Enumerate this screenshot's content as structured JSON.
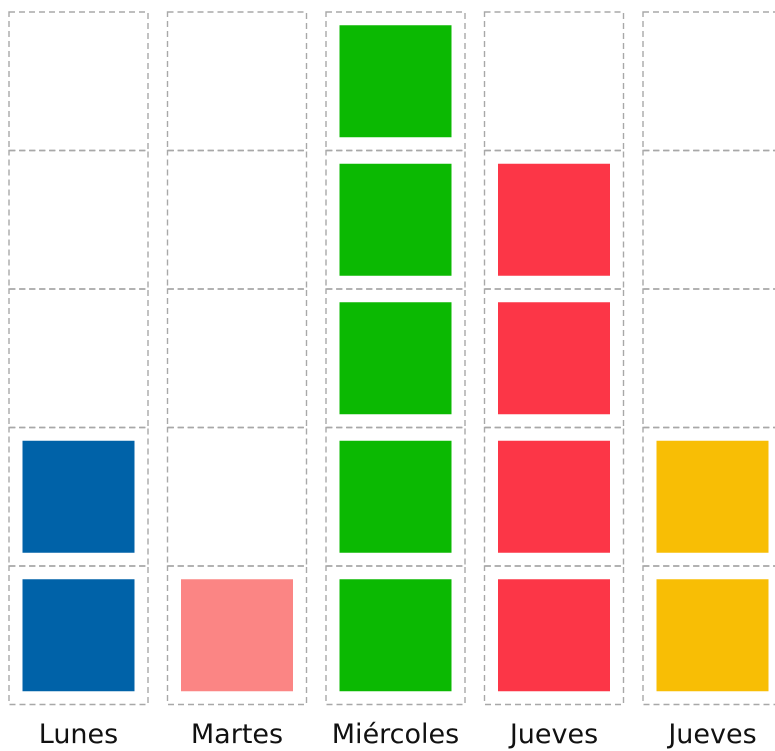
{
  "chart_data": {
    "type": "bar",
    "categories": [
      "Lunes",
      "Martes",
      "Miércoles",
      "Jueves",
      "Jueves"
    ],
    "values": [
      2,
      1,
      5,
      4,
      2
    ],
    "colors": [
      "#0062a8",
      "#fb8584",
      "#0bb902",
      "#fc3647",
      "#f8be05"
    ],
    "ylim": [
      0,
      5
    ],
    "grid": true,
    "title": "",
    "xlabel": "",
    "ylabel": ""
  }
}
